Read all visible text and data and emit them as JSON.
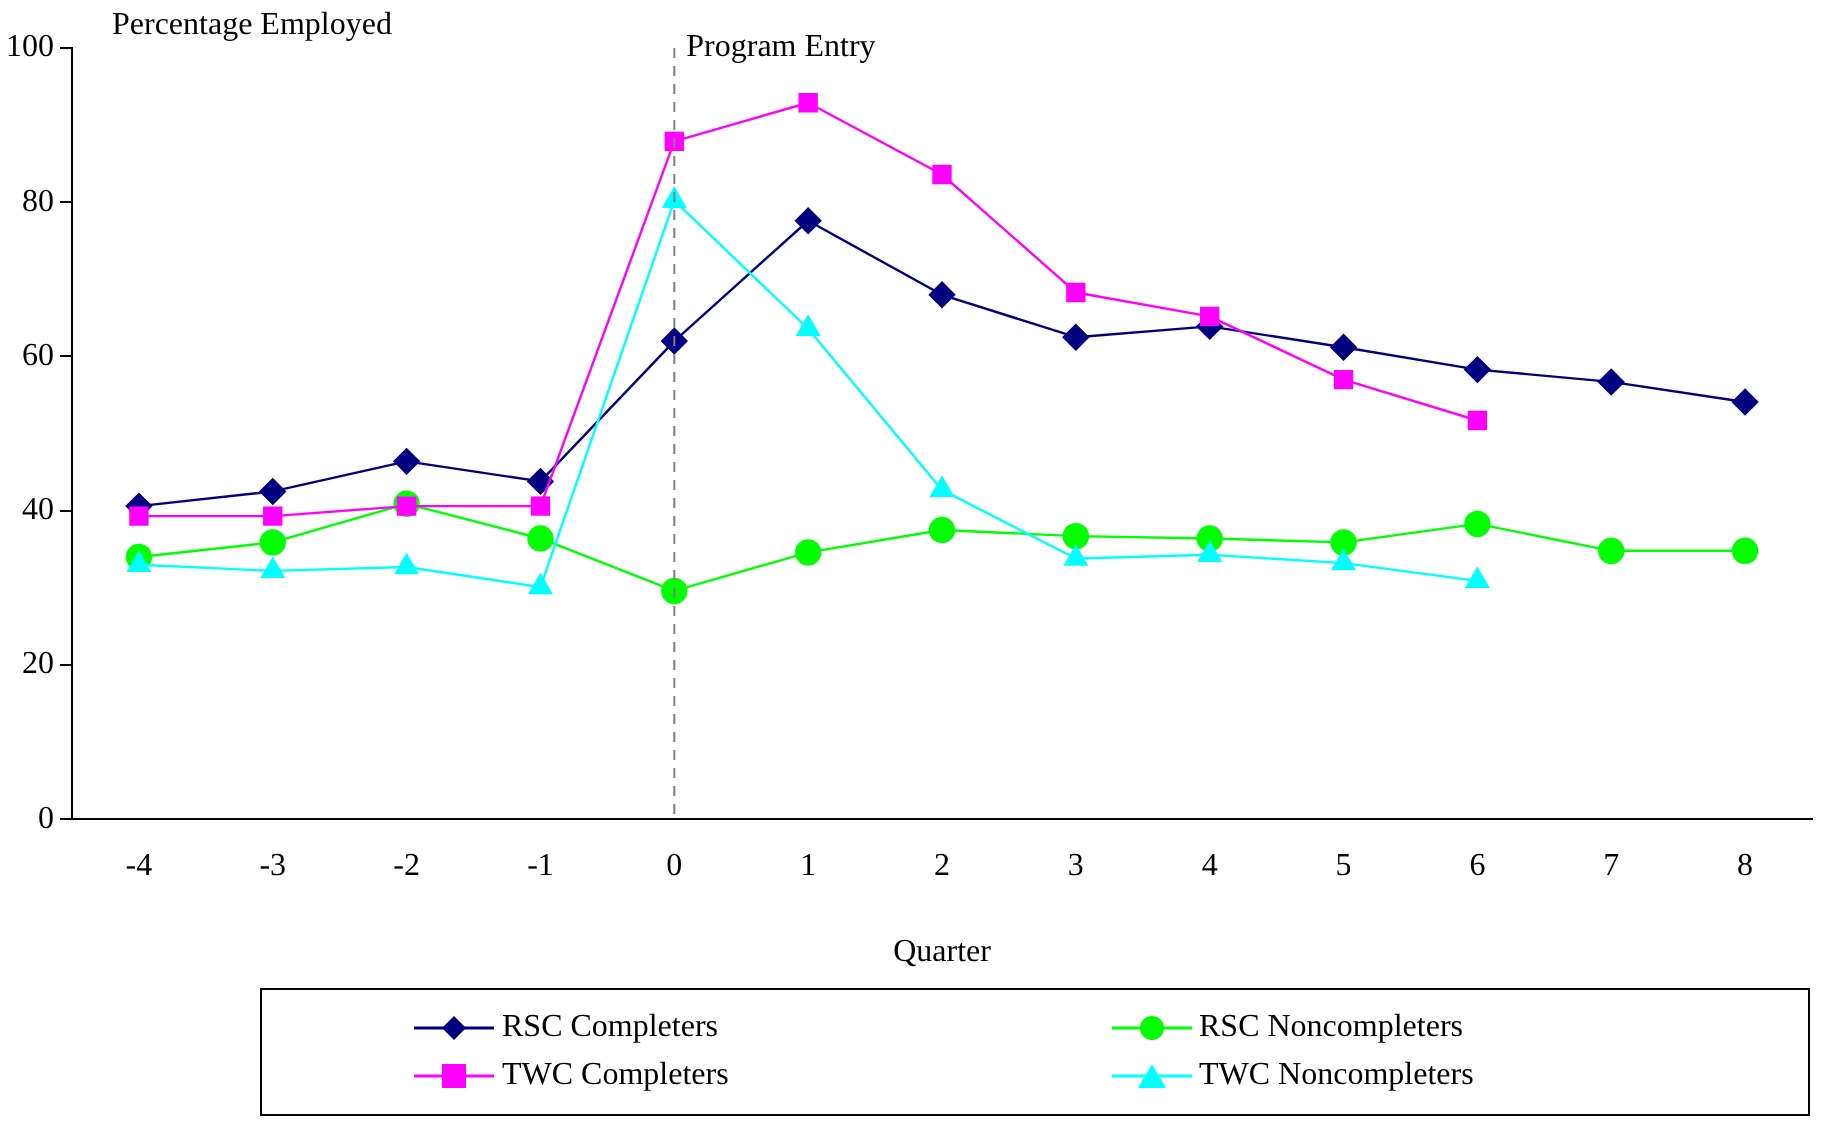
{
  "chart_data": {
    "type": "line",
    "ylabel": "Percentage Employed",
    "xlabel": "Quarter",
    "categories": [
      "-4",
      "-3",
      "-2",
      "-1",
      "0",
      "1",
      "2",
      "3",
      "4",
      "5",
      "6",
      "7",
      "8"
    ],
    "ylim": [
      0,
      100
    ],
    "yticks": [
      0,
      20,
      40,
      60,
      80,
      100
    ],
    "legend": "bottom",
    "ref_lines": [
      {
        "axis": "x",
        "value": "0",
        "label": "Program Entry",
        "color": "#808080",
        "line_style": "dashed"
      }
    ],
    "series": [
      {
        "name": "RSC Completers",
        "color": "#000080",
        "marker": "diamond",
        "values": [
          40.6,
          42.5,
          46.4,
          43.8,
          62,
          77.6,
          68,
          62.5,
          63.9,
          61.2,
          58.3,
          56.7,
          54.1
        ]
      },
      {
        "name": "RSC Noncompleters",
        "color": "#00ff00",
        "marker": "circle",
        "values": [
          34,
          35.9,
          40.9,
          36.4,
          29.6,
          34.6,
          37.5,
          36.7,
          36.4,
          35.9,
          38.3,
          34.8,
          34.8
        ]
      },
      {
        "name": "TWC Completers",
        "color": "#ff00ff",
        "marker": "square",
        "values": [
          39.3,
          39.3,
          40.6,
          40.6,
          87.9,
          92.9,
          83.6,
          68.3,
          65.2,
          57,
          51.7,
          null,
          null
        ]
      },
      {
        "name": "TWC Noncompleters",
        "color": "#00ffff",
        "marker": "triangle",
        "values": [
          33,
          32.2,
          32.7,
          30.1,
          80.2,
          63.6,
          42.7,
          33.8,
          34.3,
          33.2,
          30.9,
          null,
          null
        ]
      }
    ]
  }
}
